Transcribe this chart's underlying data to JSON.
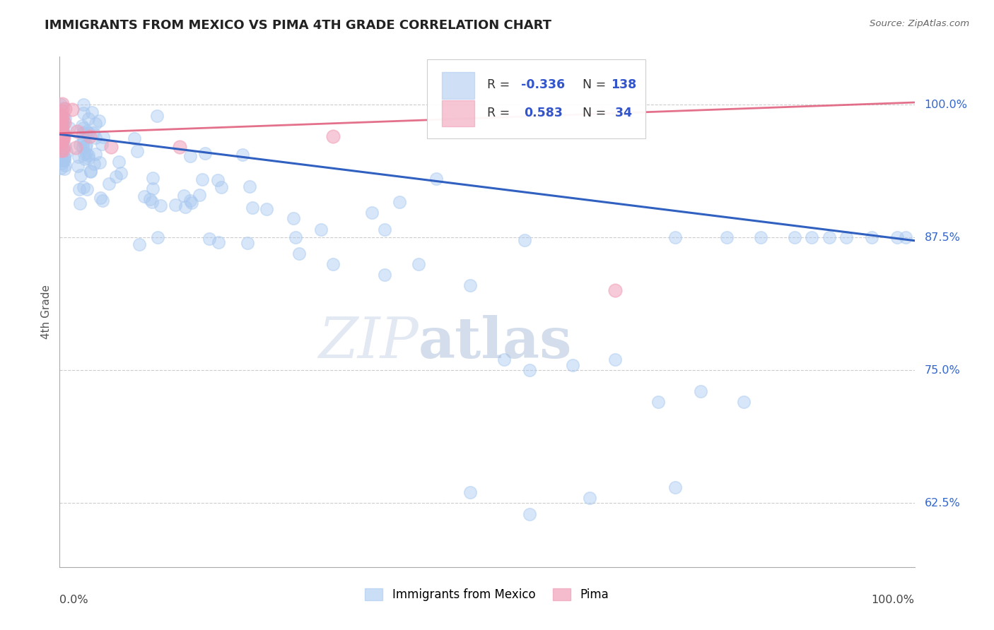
{
  "title": "IMMIGRANTS FROM MEXICO VS PIMA 4TH GRADE CORRELATION CHART",
  "source": "Source: ZipAtlas.com",
  "ylabel": "4th Grade",
  "yticks": [
    0.625,
    0.75,
    0.875,
    1.0
  ],
  "ytick_labels": [
    "62.5%",
    "75.0%",
    "87.5%",
    "100.0%"
  ],
  "xmin": 0.0,
  "xmax": 1.0,
  "ymin": 0.565,
  "ymax": 1.045,
  "legend_blue_label": "Immigrants from Mexico",
  "legend_pink_label": "Pima",
  "R_blue": -0.336,
  "N_blue": 138,
  "R_pink": 0.583,
  "N_pink": 34,
  "blue_color": "#A8C8F0",
  "pink_color": "#F0A0B8",
  "blue_line_color": "#3060C0",
  "pink_line_color": "#E05878",
  "blue_trend_x0": 0.0,
  "blue_trend_y0": 0.972,
  "blue_trend_x1": 1.0,
  "blue_trend_y1": 0.872,
  "pink_trend_x0": 0.0,
  "pink_trend_y0": 0.973,
  "pink_trend_x1": 1.0,
  "pink_trend_y1": 1.002
}
